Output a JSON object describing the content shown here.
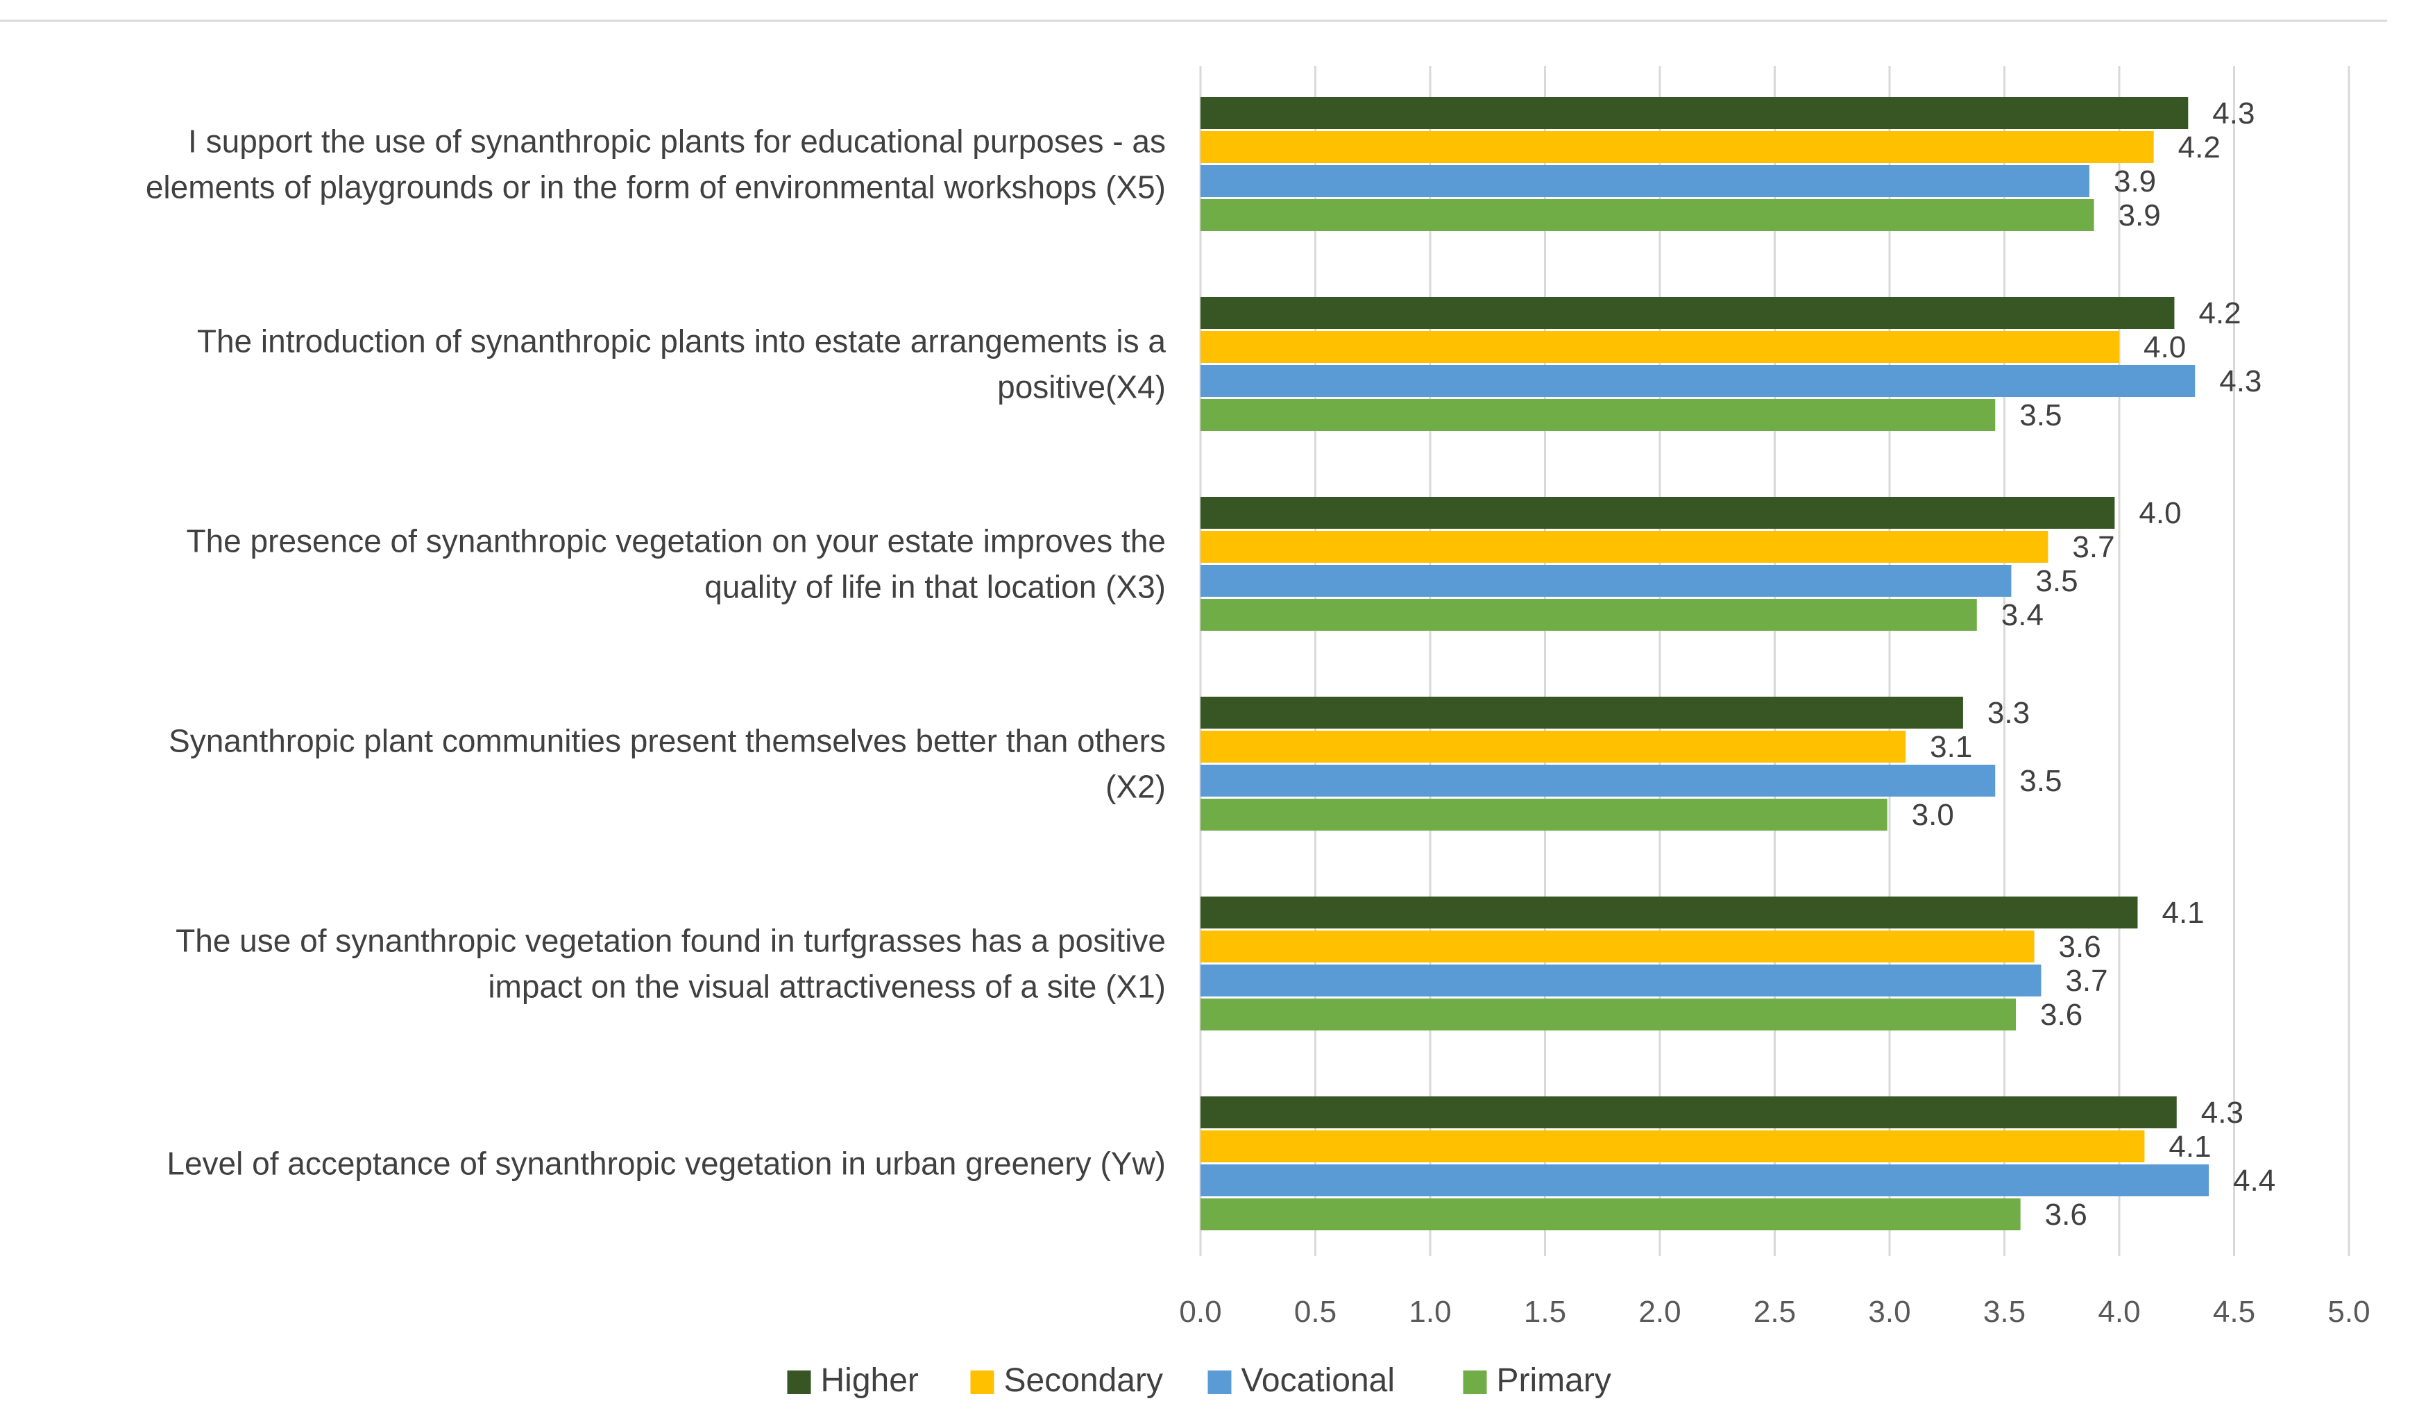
{
  "chart_data": {
    "type": "bar",
    "orientation": "horizontal",
    "title": "",
    "xlabel": "",
    "ylabel": "",
    "xlim": [
      0,
      5
    ],
    "ticks": [
      "0.0",
      "0.5",
      "1.0",
      "1.5",
      "2.0",
      "2.5",
      "3.0",
      "3.5",
      "4.0",
      "4.5",
      "5.0"
    ],
    "grid": true,
    "legend_position": "bottom",
    "categories": [
      {
        "id": "X5",
        "lines": [
          "I support the use of synanthropic plants for educational purposes - as",
          "elements of playgrounds or in the form of environmental workshops (X5)"
        ]
      },
      {
        "id": "X4",
        "lines": [
          "The introduction of synanthropic plants into estate arrangements is a",
          "positive(X4)"
        ]
      },
      {
        "id": "X3",
        "lines": [
          "The presence of synanthropic vegetation on your estate improves the",
          "quality of life in that location (X3)"
        ]
      },
      {
        "id": "X2",
        "lines": [
          "Synanthropic plant communities present themselves better than others",
          "(X2)"
        ]
      },
      {
        "id": "X1",
        "lines": [
          "The use of synanthropic vegetation found in turfgrasses has a positive",
          "impact on the visual attractiveness of a site (X1)"
        ]
      },
      {
        "id": "Yw",
        "lines": [
          "Level of acceptance of synanthropic vegetation in urban greenery (Yw)"
        ]
      }
    ],
    "series": [
      {
        "name": "Higher",
        "color": "#375623",
        "values": [
          4.3,
          4.24,
          3.98,
          3.32,
          4.08,
          4.25
        ],
        "labels": [
          "4.3",
          "4.2",
          "4.0",
          "3.3",
          "4.1",
          "4.3"
        ]
      },
      {
        "name": "Secondary",
        "color": "#FFC000",
        "values": [
          4.15,
          4.0,
          3.69,
          3.07,
          3.63,
          4.11
        ],
        "labels": [
          "4.2",
          "4.0",
          "3.7",
          "3.1",
          "3.6",
          "4.1"
        ]
      },
      {
        "name": "Vocational",
        "color": "#5B9BD5",
        "values": [
          3.87,
          4.33,
          3.53,
          3.46,
          3.66,
          4.39
        ],
        "labels": [
          "3.9",
          "4.3",
          "3.5",
          "3.5",
          "3.7",
          "4.4"
        ]
      },
      {
        "name": "Primary",
        "color": "#70AD47",
        "values": [
          3.89,
          3.46,
          3.38,
          2.99,
          3.55,
          3.57
        ],
        "labels": [
          "3.9",
          "3.5",
          "3.4",
          "3.0",
          "3.6",
          "3.6"
        ]
      }
    ]
  }
}
